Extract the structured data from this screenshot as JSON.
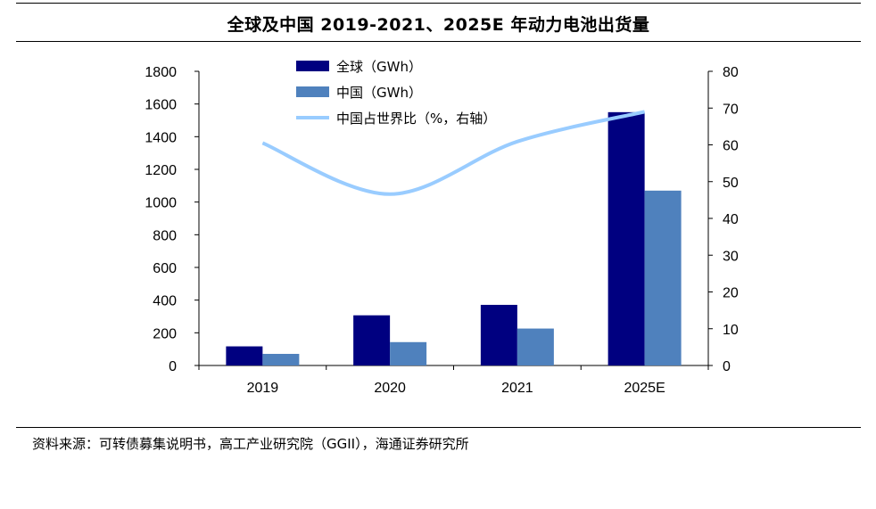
{
  "header": {
    "title": "全球及中国 2019-2021、2025E 年动力电池出货量"
  },
  "footer": {
    "source": "资料来源：可转债募集说明书，高工产业研究院（GGII），海通证券研究所"
  },
  "colors": {
    "global": "#000080",
    "china": "#4f81bd",
    "share": "#99ccff"
  },
  "chart_data": {
    "type": "bar",
    "title": "全球及中国 2019-2021、2025E 年动力电池出货量",
    "categories": [
      "2019",
      "2020",
      "2021",
      "2025E"
    ],
    "series": [
      {
        "name": "全球（GWh）",
        "type": "bar",
        "axis": "left",
        "values": [
          117,
          307,
          371,
          1550
        ]
      },
      {
        "name": "中国（GWh）",
        "type": "bar",
        "axis": "left",
        "values": [
          71,
          143,
          226,
          1070
        ]
      },
      {
        "name": "中国占世界比（%，右轴）",
        "type": "line",
        "axis": "right",
        "values": [
          60.5,
          46.6,
          60.9,
          69.0
        ]
      }
    ],
    "left_axis": {
      "ylim": [
        0,
        1800
      ],
      "ticks": [
        0,
        200,
        400,
        600,
        800,
        1000,
        1200,
        1400,
        1600,
        1800
      ]
    },
    "right_axis": {
      "ylim": [
        0,
        80
      ],
      "ticks": [
        0,
        10,
        20,
        30,
        40,
        50,
        60,
        70,
        80
      ]
    },
    "xlabel": "",
    "ylabel": "",
    "grid": false,
    "legend": "top-left"
  }
}
